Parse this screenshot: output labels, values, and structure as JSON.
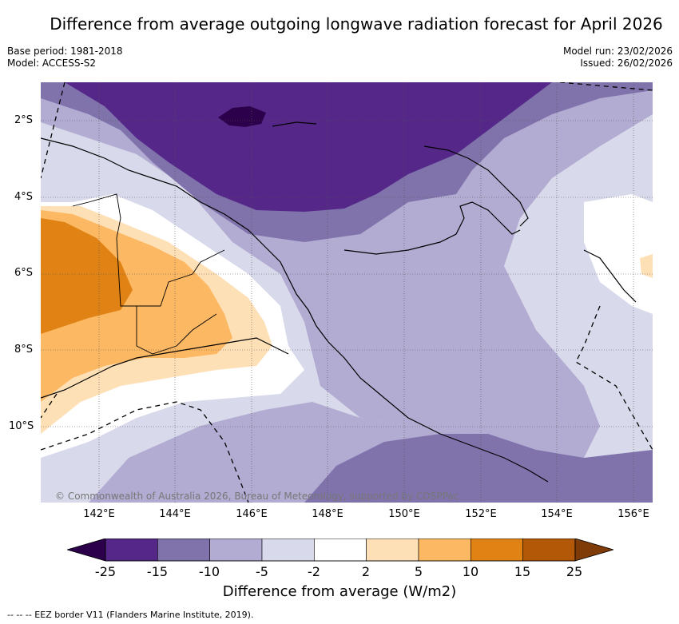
{
  "title": "Difference from average outgoing longwave radiation forecast for April 2026",
  "meta": {
    "base_period": "Base period: 1981-2018",
    "model": "Model: ACCESS-S2",
    "model_run": "Model run: 23/02/2026",
    "issued": "Issued: 26/02/2026"
  },
  "axes": {
    "lat_labels": [
      "2°S",
      "4°S",
      "6°S",
      "8°S",
      "10°S"
    ],
    "lon_labels": [
      "142°E",
      "144°E",
      "146°E",
      "148°E",
      "150°E",
      "152°E",
      "154°E",
      "156°E"
    ]
  },
  "copyright": "© Commonwealth of Australia 2026, Bureau of Meteorology, supported by COSPPac",
  "colorbar": {
    "ticks": [
      "-25",
      "-15",
      "-10",
      "-5",
      "-2",
      "2",
      "5",
      "10",
      "15",
      "25"
    ],
    "colors": [
      "#542788",
      "#8073ac",
      "#b2abd2",
      "#d8daeb",
      "#ffffff",
      "#fee0b6",
      "#fdb863",
      "#e08214",
      "#b35806"
    ],
    "under_color": "#2d004b",
    "over_color": "#7f3b08",
    "label": "Difference from average (W/m2)"
  },
  "footnote": "-- -- -- EEZ border V11 (Flanders Marine Institute, 2019)."
}
